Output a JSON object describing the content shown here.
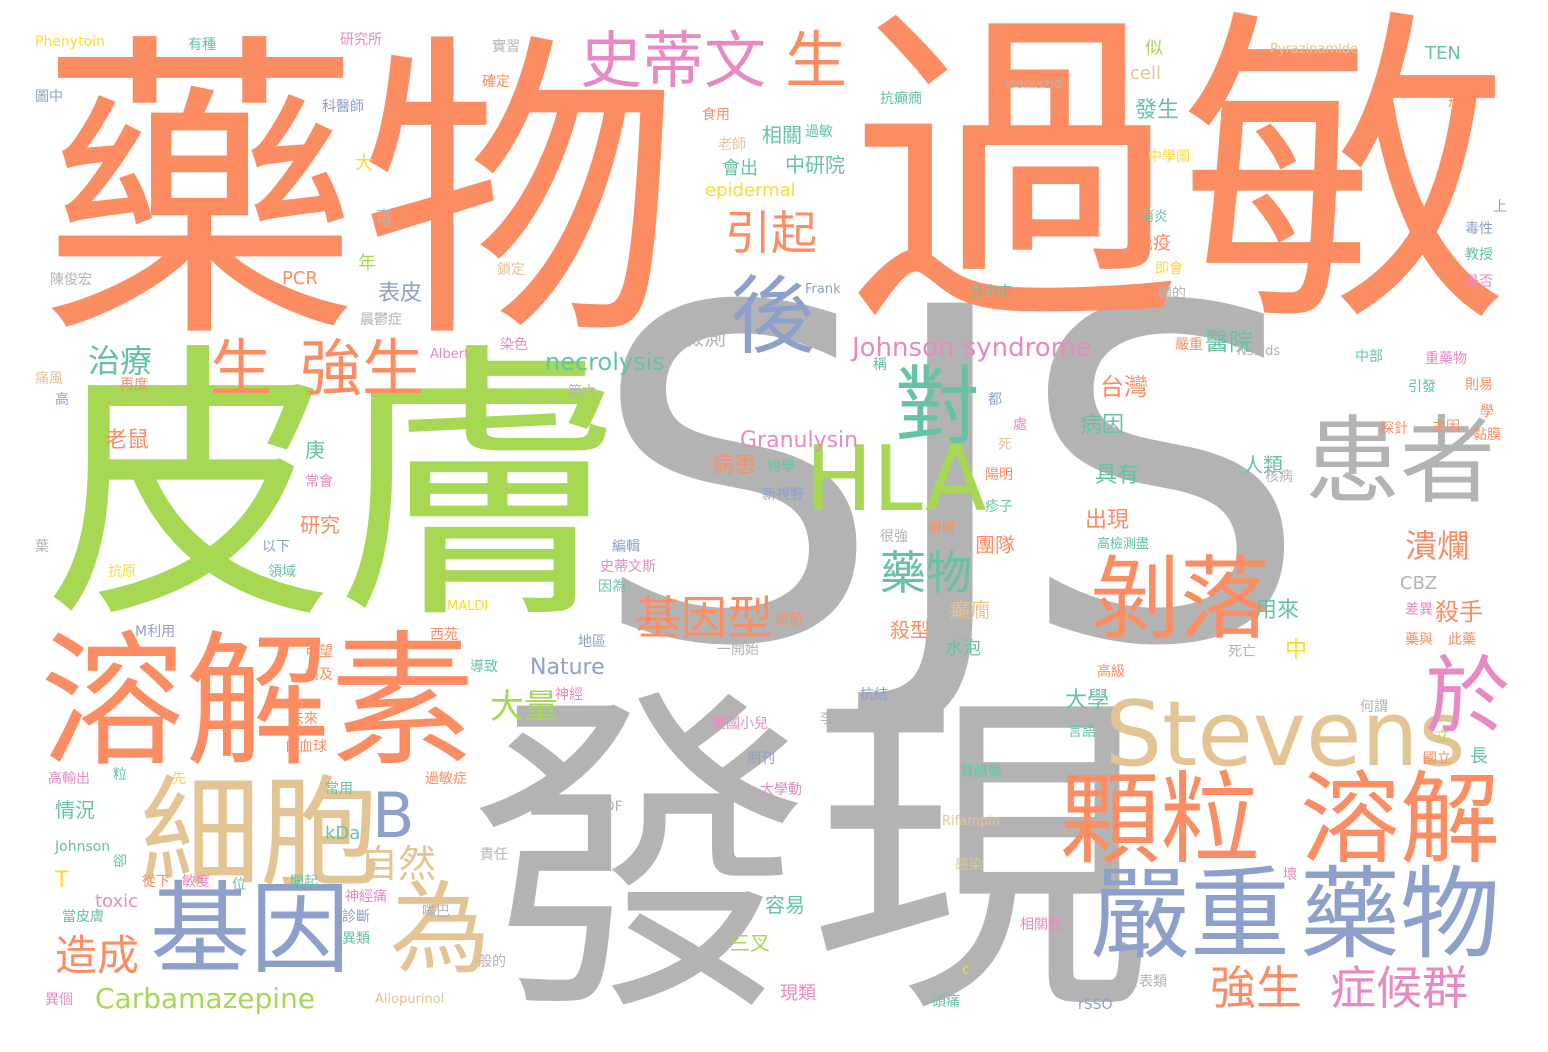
{
  "palette": {
    "orange": "#fc8d62",
    "green": "#a6d854",
    "gray": "#b3b3b3",
    "blue": "#8da0cb",
    "tan": "#e5c494",
    "pink": "#e78ac3",
    "teal": "#66c2a5",
    "yellow": "#ffd92f"
  },
  "words": [
    {
      "text": "SJS",
      "c": "gray"
    },
    {
      "text": "過敏",
      "c": "orange"
    },
    {
      "text": "藥物",
      "c": "orange"
    },
    {
      "text": "皮膚",
      "c": "green"
    },
    {
      "text": "發現",
      "c": "gray"
    },
    {
      "text": "溶解素",
      "c": "orange"
    },
    {
      "text": "細胞",
      "c": "tan"
    },
    {
      "text": "基因",
      "c": "blue"
    },
    {
      "text": "為",
      "c": "tan"
    },
    {
      "text": "顆粒",
      "c": "orange"
    },
    {
      "text": "溶解",
      "c": "orange"
    },
    {
      "text": "嚴重",
      "c": "blue"
    },
    {
      "text": "藥物",
      "c": "blue"
    },
    {
      "text": "Stevens",
      "c": "tan"
    },
    {
      "text": "患者",
      "c": "gray"
    },
    {
      "text": "剝落",
      "c": "orange"
    },
    {
      "text": "HLA",
      "c": "green"
    },
    {
      "text": "對",
      "c": "teal"
    },
    {
      "text": "後",
      "c": "blue"
    },
    {
      "text": "於",
      "c": "pink"
    },
    {
      "text": "B",
      "c": "blue"
    },
    {
      "text": "史蒂文",
      "c": "pink"
    },
    {
      "text": "生",
      "c": "orange"
    },
    {
      "text": "生",
      "c": "orange"
    },
    {
      "text": "強生",
      "c": "orange"
    },
    {
      "text": "引起",
      "c": "orange"
    },
    {
      "text": "藥物",
      "c": "teal"
    },
    {
      "text": "基因型",
      "c": "orange"
    },
    {
      "text": "自然",
      "c": "tan"
    },
    {
      "text": "強生",
      "c": "orange"
    },
    {
      "text": "症候群",
      "c": "pink"
    },
    {
      "text": "造成",
      "c": "orange"
    },
    {
      "text": "大量",
      "c": "green"
    },
    {
      "text": "治療",
      "c": "teal"
    },
    {
      "text": "Carbamazepine",
      "c": "green"
    },
    {
      "text": "Johnson syndrome",
      "c": "pink"
    },
    {
      "text": "necrolysis",
      "c": "teal"
    },
    {
      "text": "Granulysin",
      "c": "pink"
    },
    {
      "text": "潰爛",
      "c": "orange"
    },
    {
      "text": "殺手",
      "c": "orange"
    },
    {
      "text": "台灣",
      "c": "orange"
    },
    {
      "text": "醫院",
      "c": "teal"
    },
    {
      "text": "出現",
      "c": "orange"
    },
    {
      "text": "病因",
      "c": "teal"
    },
    {
      "text": "具有",
      "c": "teal"
    },
    {
      "text": "人類",
      "c": "teal"
    },
    {
      "text": "用來",
      "c": "teal"
    },
    {
      "text": "中",
      "c": "yellow"
    },
    {
      "text": "大學",
      "c": "teal"
    },
    {
      "text": "Nature",
      "c": "blue"
    },
    {
      "text": "三叉",
      "c": "green"
    },
    {
      "text": "容易",
      "c": "teal"
    },
    {
      "text": "現類",
      "c": "pink"
    },
    {
      "text": "殺型",
      "c": "orange"
    },
    {
      "text": "癲癇",
      "c": "tan"
    },
    {
      "text": "團隊",
      "c": "orange"
    },
    {
      "text": "水泡",
      "c": "teal"
    },
    {
      "text": "相關",
      "c": "teal"
    },
    {
      "text": "發生",
      "c": "teal"
    },
    {
      "text": "中研院",
      "c": "teal"
    },
    {
      "text": "會出",
      "c": "teal"
    },
    {
      "text": "表皮",
      "c": "blue"
    },
    {
      "text": "老鼠",
      "c": "orange"
    },
    {
      "text": "病患",
      "c": "orange"
    },
    {
      "text": "檢測",
      "c": "gray"
    },
    {
      "text": "研究",
      "c": "orange"
    },
    {
      "text": "情況",
      "c": "teal"
    },
    {
      "text": "庚",
      "c": "teal"
    },
    {
      "text": "年",
      "c": "green"
    },
    {
      "text": "大",
      "c": "yellow"
    },
    {
      "text": "毒",
      "c": "gray"
    },
    {
      "text": "似",
      "c": "green"
    },
    {
      "text": "cell",
      "c": "tan"
    },
    {
      "text": "epidermal",
      "c": "yellow"
    },
    {
      "text": "kDa",
      "c": "teal"
    },
    {
      "text": "toxic",
      "c": "pink"
    },
    {
      "text": "T",
      "c": "yellow"
    },
    {
      "text": "Johnson",
      "c": "teal"
    },
    {
      "text": "CBZ",
      "c": "gray"
    },
    {
      "text": "TEN",
      "c": "teal"
    },
    {
      "text": "PCR",
      "c": "orange"
    },
    {
      "text": "免疫",
      "c": "orange"
    },
    {
      "text": "Phenytoin",
      "c": "yellow"
    },
    {
      "text": "有種",
      "c": "teal"
    },
    {
      "text": "研究所",
      "c": "pink"
    },
    {
      "text": "實習",
      "c": "gray"
    },
    {
      "text": "Pyrazinamide",
      "c": "tan"
    },
    {
      "text": "Isoniazid",
      "c": "gray"
    },
    {
      "text": "圖中",
      "c": "blue"
    },
    {
      "text": "科醫師",
      "c": "blue"
    },
    {
      "text": "確定",
      "c": "orange"
    },
    {
      "text": "食用",
      "c": "orange"
    },
    {
      "text": "老師",
      "c": "tan"
    },
    {
      "text": "過敏",
      "c": "teal"
    },
    {
      "text": "抗癲癇",
      "c": "teal"
    },
    {
      "text": "面積",
      "c": "orange"
    },
    {
      "text": "中學圖",
      "c": "yellow"
    },
    {
      "text": "飛信",
      "c": "orange"
    },
    {
      "text": "消炎",
      "c": "teal"
    },
    {
      "text": "毒性",
      "c": "blue"
    },
    {
      "text": "上",
      "c": "blue"
    },
    {
      "text": "教授",
      "c": "teal"
    },
    {
      "text": "陳俊宏",
      "c": "gray"
    },
    {
      "text": "鎖定",
      "c": "tan"
    },
    {
      "text": "Frank",
      "c": "blue"
    },
    {
      "text": "台中市",
      "c": "teal"
    },
    {
      "text": "即會",
      "c": "yellow"
    },
    {
      "text": "體的",
      "c": "gray"
    },
    {
      "text": "是否",
      "c": "pink"
    },
    {
      "text": "晨鬱症",
      "c": "gray"
    },
    {
      "text": "染色",
      "c": "pink"
    },
    {
      "text": "Albert",
      "c": "pink"
    },
    {
      "text": "Nsaids",
      "c": "gray"
    },
    {
      "text": "嚴重",
      "c": "orange"
    },
    {
      "text": "中部",
      "c": "teal"
    },
    {
      "text": "重藥物",
      "c": "pink"
    },
    {
      "text": "則易",
      "c": "orange"
    },
    {
      "text": "痛風",
      "c": "tan"
    },
    {
      "text": "再度",
      "c": "orange"
    },
    {
      "text": "高",
      "c": "blue"
    },
    {
      "text": "第六",
      "c": "gray"
    },
    {
      "text": "引發",
      "c": "teal"
    },
    {
      "text": "學",
      "c": "orange"
    },
    {
      "text": "探針",
      "c": "orange"
    },
    {
      "text": "主因",
      "c": "orange"
    },
    {
      "text": "黏膜",
      "c": "orange"
    },
    {
      "text": "都",
      "c": "blue"
    },
    {
      "text": "處",
      "c": "pink"
    },
    {
      "text": "死",
      "c": "tan"
    },
    {
      "text": "陽明",
      "c": "orange"
    },
    {
      "text": "核病",
      "c": "gray"
    },
    {
      "text": "常會",
      "c": "pink"
    },
    {
      "text": "物學",
      "c": "teal"
    },
    {
      "text": "新視野",
      "c": "blue"
    },
    {
      "text": "疹子",
      "c": "teal"
    },
    {
      "text": "高檢測盡",
      "c": "teal"
    },
    {
      "text": "很強",
      "c": "gray"
    },
    {
      "text": "眼睛",
      "c": "orange"
    },
    {
      "text": "以下",
      "c": "blue"
    },
    {
      "text": "領域",
      "c": "teal"
    },
    {
      "text": "抗原",
      "c": "yellow"
    },
    {
      "text": "MALDI",
      "c": "yellow"
    },
    {
      "text": "M利用",
      "c": "blue"
    },
    {
      "text": "西苑",
      "c": "orange"
    },
    {
      "text": "編輯",
      "c": "blue"
    },
    {
      "text": "史蒂文斯",
      "c": "pink"
    },
    {
      "text": "因為",
      "c": "teal"
    },
    {
      "text": "地區",
      "c": "blue"
    },
    {
      "text": "藥前",
      "c": "orange"
    },
    {
      "text": "一開始",
      "c": "gray"
    },
    {
      "text": "差異",
      "c": "pink"
    },
    {
      "text": "藥與",
      "c": "orange"
    },
    {
      "text": "此藥",
      "c": "orange"
    },
    {
      "text": "死亡",
      "c": "gray"
    },
    {
      "text": "可望",
      "c": "orange"
    },
    {
      "text": "痛及",
      "c": "orange"
    },
    {
      "text": "導致",
      "c": "teal"
    },
    {
      "text": "神經",
      "c": "pink"
    },
    {
      "text": "高級",
      "c": "orange"
    },
    {
      "text": "抗結",
      "c": "blue"
    },
    {
      "text": "李惠芳",
      "c": "gray"
    },
    {
      "text": "美國小兒",
      "c": "pink"
    },
    {
      "text": "未來",
      "c": "orange"
    },
    {
      "text": "白血球",
      "c": "orange"
    },
    {
      "text": "言語",
      "c": "teal"
    },
    {
      "text": "何謂",
      "c": "gray"
    },
    {
      "text": "立",
      "c": "green"
    },
    {
      "text": "國立",
      "c": "orange"
    },
    {
      "text": "長",
      "c": "teal"
    },
    {
      "text": "高輸出",
      "c": "pink"
    },
    {
      "text": "粒",
      "c": "teal"
    },
    {
      "text": "先",
      "c": "yellow"
    },
    {
      "text": "常用",
      "c": "teal"
    },
    {
      "text": "期刊",
      "c": "blue"
    },
    {
      "text": "質譜儀",
      "c": "teal"
    },
    {
      "text": "TOF",
      "c": "gray"
    },
    {
      "text": "過敏症",
      "c": "orange"
    },
    {
      "text": "大學動",
      "c": "pink"
    },
    {
      "text": "Rifampin",
      "c": "tan"
    },
    {
      "text": "責任",
      "c": "gray"
    },
    {
      "text": "卻",
      "c": "teal"
    },
    {
      "text": "從下",
      "c": "orange"
    },
    {
      "text": "敏度",
      "c": "pink"
    },
    {
      "text": "位",
      "c": "teal"
    },
    {
      "text": "開起",
      "c": "teal"
    },
    {
      "text": "壞",
      "c": "pink"
    },
    {
      "text": "感染",
      "c": "tan"
    },
    {
      "text": "當皮膚",
      "c": "teal"
    },
    {
      "text": "神經痛",
      "c": "pink"
    },
    {
      "text": "嘴巴",
      "c": "gray"
    },
    {
      "text": "診斷",
      "c": "blue"
    },
    {
      "text": "相關性",
      "c": "pink"
    },
    {
      "text": "葉",
      "c": "gray"
    },
    {
      "text": "稱",
      "c": "teal"
    },
    {
      "text": "般的",
      "c": "gray"
    },
    {
      "text": "c",
      "c": "yellow"
    },
    {
      "text": "發表類",
      "c": "gray"
    },
    {
      "text": "異類",
      "c": "teal"
    },
    {
      "text": "異個",
      "c": "pink"
    },
    {
      "text": "Allopurinol",
      "c": "tan"
    },
    {
      "text": "頭痛",
      "c": "teal"
    },
    {
      "text": "rSSO",
      "c": "blue"
    }
  ]
}
